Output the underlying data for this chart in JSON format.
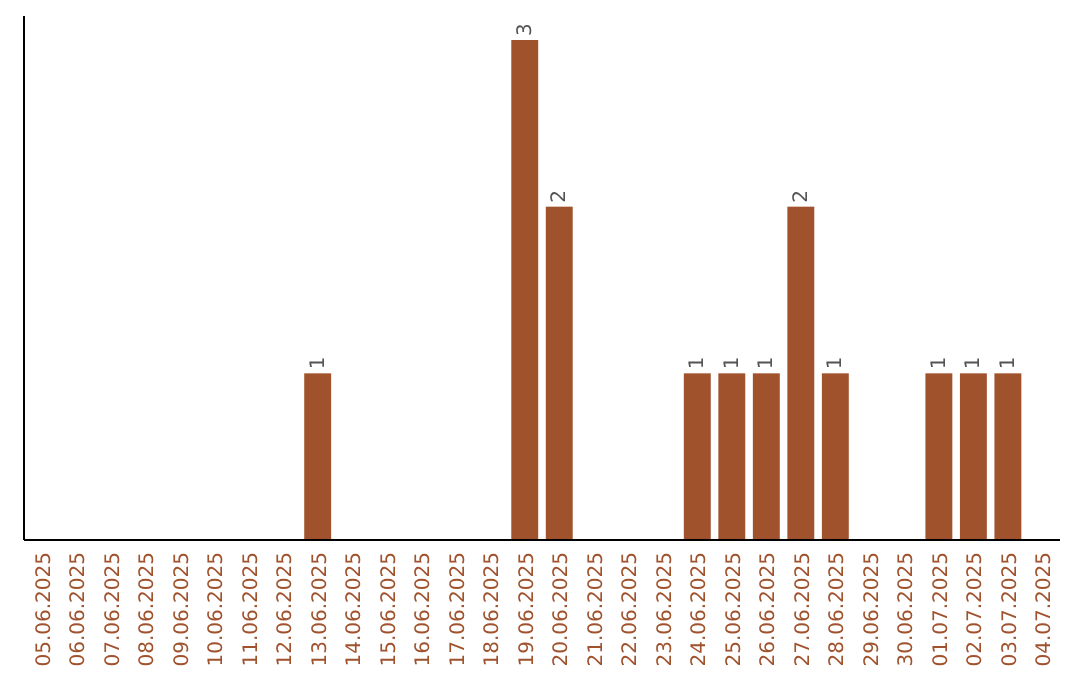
{
  "chart_data": {
    "type": "bar",
    "categories": [
      "05.06.2025",
      "06.06.2025",
      "07.06.2025",
      "08.06.2025",
      "09.06.2025",
      "10.06.2025",
      "11.06.2025",
      "12.06.2025",
      "13.06.2025",
      "14.06.2025",
      "15.06.2025",
      "16.06.2025",
      "17.06.2025",
      "18.06.2025",
      "19.06.2025",
      "20.06.2025",
      "21.06.2025",
      "22.06.2025",
      "23.06.2025",
      "24.06.2025",
      "25.06.2025",
      "26.06.2025",
      "27.06.2025",
      "28.06.2025",
      "29.06.2025",
      "30.06.2025",
      "01.07.2025",
      "02.07.2025",
      "03.07.2025",
      "04.07.2025"
    ],
    "values": [
      0,
      0,
      0,
      0,
      0,
      0,
      0,
      0,
      1,
      0,
      0,
      0,
      0,
      0,
      3,
      2,
      0,
      0,
      0,
      1,
      1,
      1,
      2,
      1,
      0,
      0,
      1,
      1,
      1,
      0
    ],
    "value_labels": [
      null,
      null,
      null,
      null,
      null,
      null,
      null,
      null,
      "1",
      null,
      null,
      null,
      null,
      null,
      "3",
      "2",
      null,
      null,
      null,
      "1",
      "1",
      "1",
      "2",
      "1",
      null,
      null,
      "1",
      "1",
      "1",
      null
    ],
    "color": "#a0522d"
  }
}
